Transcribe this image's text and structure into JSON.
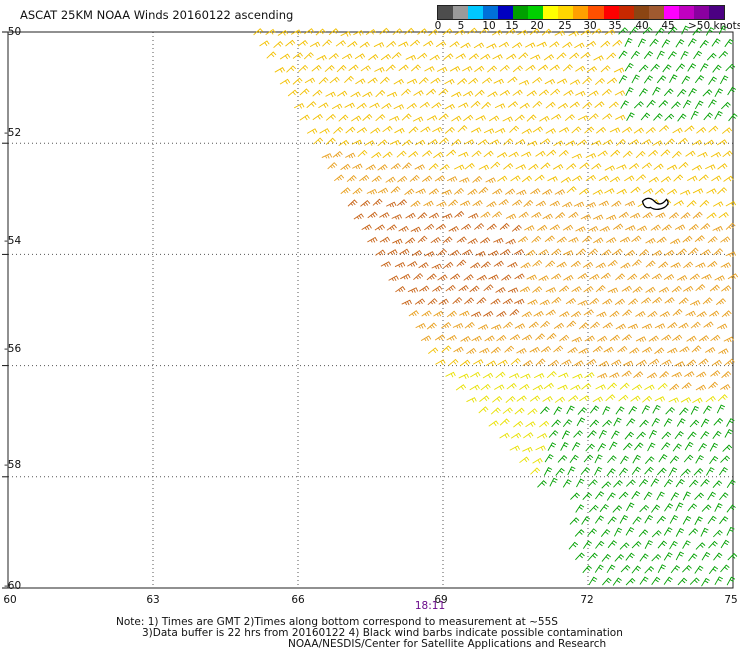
{
  "title": "ASCAT 25KM NOAA Winds 20160122 ascending",
  "legend": {
    "colors": [
      "#4d4d4d",
      "#9a9a9a",
      "#00c8ff",
      "#0070d8",
      "#0000c0",
      "#00a000",
      "#00d000",
      "#ffff00",
      "#ffd700",
      "#ffa000",
      "#ff5000",
      "#ff0000",
      "#c82800",
      "#8b4513",
      "#a05a30",
      "#ff00ff",
      "#c000c0",
      "#8a00a0",
      "#4b0082"
    ],
    "labels": [
      "0",
      "5",
      "10",
      "15",
      "20",
      "25",
      "30",
      "35",
      "40",
      "45",
      ">50 knots"
    ]
  },
  "lat_labels": [
    "-50",
    "-52",
    "-54",
    "-56",
    "-58",
    "-60"
  ],
  "lon_labels": [
    "60",
    "63",
    "66",
    "69",
    "72",
    "75"
  ],
  "time_label": "18:11",
  "notes": [
    "Note: 1) Times are GMT 2)Times along bottom correspond to measurement at ~55S",
    "3)Data buffer is 22 hrs from 20160122 4) Black wind barbs indicate possible contamination",
    "NOAA/NESDIS/Center for Satellite Applications and Research"
  ],
  "chart_data": {
    "type": "wind_barb_map",
    "lat_range": [
      -60,
      -50
    ],
    "lon_range": [
      60,
      75
    ],
    "swath_edge_lon_at_lat": [
      [
        -50,
        65.0
      ],
      [
        -56,
        68.8
      ],
      [
        -58,
        70.8
      ],
      [
        -60,
        72.0
      ]
    ],
    "speed_zones_knots": [
      {
        "region": "north-central swath",
        "speed": 25
      },
      {
        "region": "central band near 54S 66-70E",
        "speed": 35
      },
      {
        "region": "north-east corner near 50-51S 73-75E",
        "speed": 15
      },
      {
        "region": "south-east near 57-60S 71-75E",
        "speed": 15
      }
    ]
  }
}
